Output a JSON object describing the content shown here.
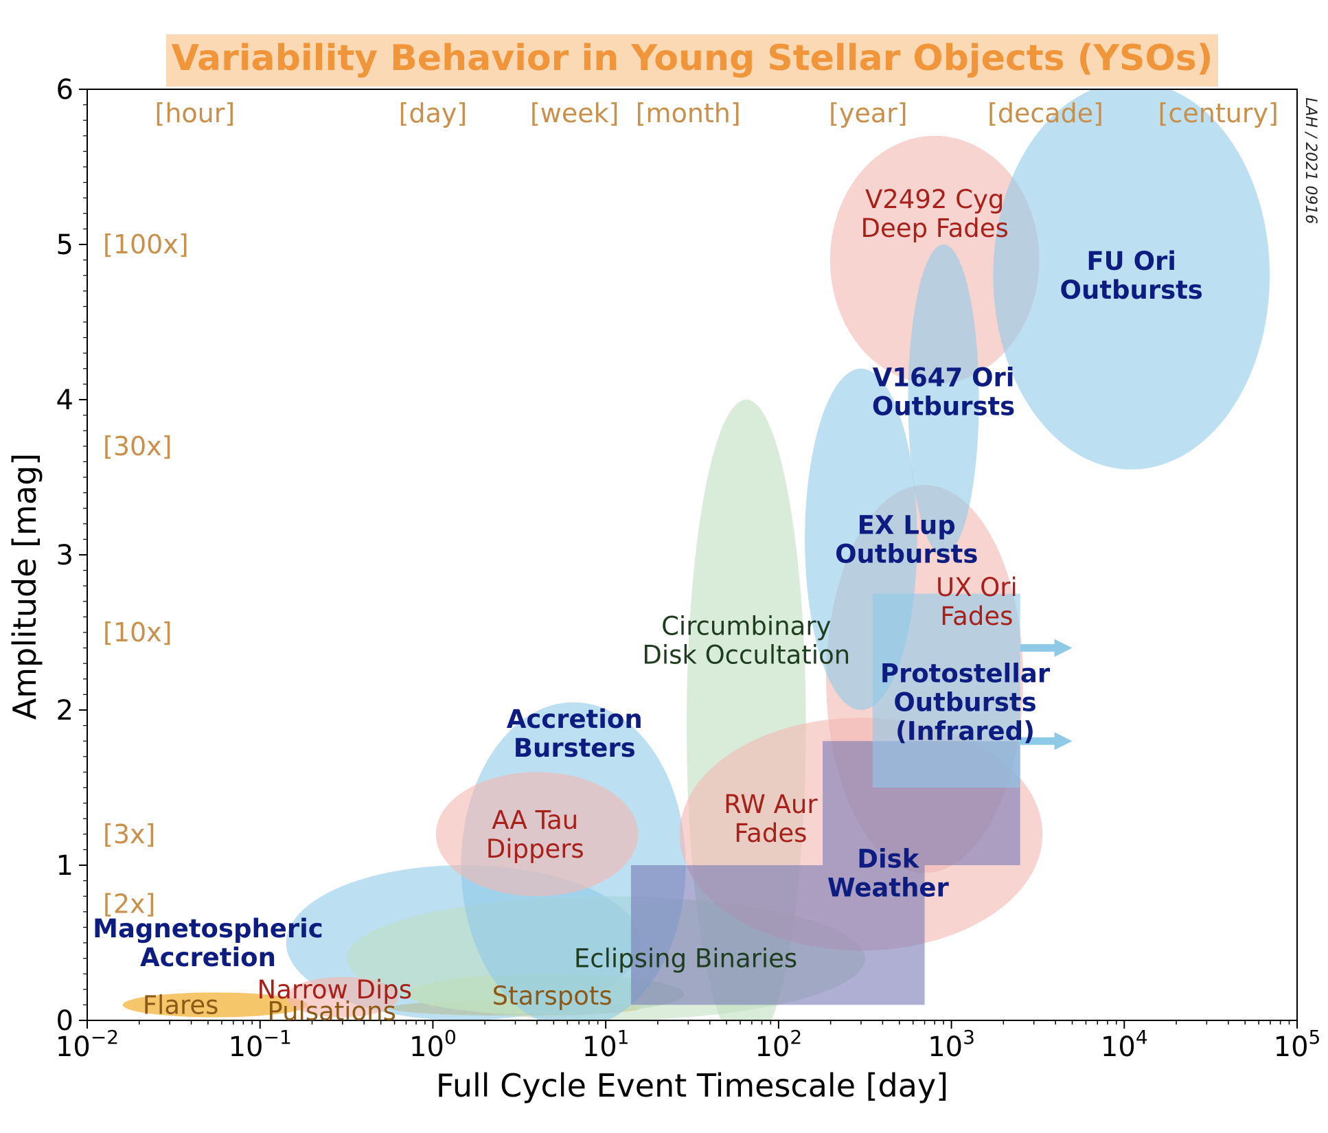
{
  "chart_data": {
    "type": "region-map",
    "title": "Variability Behavior in Young Stellar Objects (YSOs)",
    "xlabel": "Full Cycle Event Timescale [day]",
    "ylabel": "Amplitude [mag]",
    "xscale": "log",
    "xlim": [
      0.01,
      100000
    ],
    "ylim": [
      0,
      6
    ],
    "x_ticks": [
      {
        "value": 0.01,
        "base": "10",
        "exp": "−2"
      },
      {
        "value": 0.1,
        "base": "10",
        "exp": "−1"
      },
      {
        "value": 1,
        "base": "10",
        "exp": "0"
      },
      {
        "value": 10,
        "base": "10",
        "exp": "1"
      },
      {
        "value": 100,
        "base": "10",
        "exp": "2"
      },
      {
        "value": 1000,
        "base": "10",
        "exp": "3"
      },
      {
        "value": 10000,
        "base": "10",
        "exp": "4"
      },
      {
        "value": 100000,
        "base": "10",
        "exp": "5"
      }
    ],
    "y_ticks": [
      {
        "value": 0,
        "label": "0"
      },
      {
        "value": 1,
        "label": "1"
      },
      {
        "value": 2,
        "label": "2"
      },
      {
        "value": 3,
        "label": "3"
      },
      {
        "value": 4,
        "label": "4"
      },
      {
        "value": 5,
        "label": "5"
      },
      {
        "value": 6,
        "label": "6"
      }
    ],
    "time_labels": [
      {
        "text": "[hour]",
        "x": 0.042
      },
      {
        "text": "[day]",
        "x": 1.0
      },
      {
        "text": "[week]",
        "x": 6.6
      },
      {
        "text": "[month]",
        "x": 30
      },
      {
        "text": "[year]",
        "x": 330
      },
      {
        "text": "[decade]",
        "x": 3500
      },
      {
        "text": "[century]",
        "x": 35000
      }
    ],
    "flux_labels": [
      {
        "text": "[100x]",
        "y": 5.0
      },
      {
        "text": "[30x]",
        "y": 3.7
      },
      {
        "text": "[10x]",
        "y": 2.5
      },
      {
        "text": "[3x]",
        "y": 1.2
      },
      {
        "text": "[2x]",
        "y": 0.75
      }
    ],
    "colors": {
      "blue": "#8fc9e8",
      "red": "#f4b8b2",
      "green": "#bfdfbf",
      "orange": "#f2b945",
      "purple": "#7879b4",
      "navy_text": "#0d1c80",
      "red_text": "#a8201a",
      "green_text": "#1e3d1e",
      "brown_text": "#8c5a16"
    },
    "ellipses": [
      {
        "name": "flares",
        "cx": 0.055,
        "cy": 0.1,
        "dex": 1.07,
        "h": 0.16,
        "color": "orange",
        "opacity": 0.8
      },
      {
        "name": "pulsations",
        "cx": 3.0,
        "cy": 0.08,
        "dex": 1.45,
        "h": 0.1,
        "color": "orange",
        "opacity": 0.75
      },
      {
        "name": "magnetospheric-accretion",
        "cx": 1.5,
        "cy": 0.5,
        "dex": 2.05,
        "h": 1.0,
        "color": "blue",
        "opacity": 0.6
      },
      {
        "name": "eclipsing-binaries",
        "cx": 10,
        "cy": 0.4,
        "dex": 3.0,
        "h": 0.8,
        "color": "green",
        "opacity": 0.55
      },
      {
        "name": "starspots",
        "cx": 4.5,
        "cy": 0.17,
        "dex": 1.6,
        "h": 0.26,
        "color": "green",
        "opacity": 0.8
      },
      {
        "name": "narrow-dips",
        "cx": 0.3,
        "cy": 0.15,
        "dex": 0.65,
        "h": 0.26,
        "color": "red",
        "opacity": 0.65
      },
      {
        "name": "accretion-bursters",
        "cx": 6.5,
        "cy": 1.0,
        "dex": 1.3,
        "h": 2.1,
        "color": "blue",
        "opacity": 0.6
      },
      {
        "name": "aa-tau-dippers",
        "cx": 4.0,
        "cy": 1.2,
        "dex": 1.17,
        "h": 0.8,
        "color": "red",
        "opacity": 0.6
      },
      {
        "name": "circumbinary",
        "cx": 65,
        "cy": 1.9,
        "dex": 0.69,
        "h": 4.2,
        "color": "green",
        "opacity": 0.6
      },
      {
        "name": "rw-aur",
        "cx": 300,
        "cy": 1.2,
        "dex": 2.1,
        "h": 1.5,
        "color": "red",
        "opacity": 0.6
      },
      {
        "name": "ux-ori",
        "cx": 700,
        "cy": 2.2,
        "dex": 1.14,
        "h": 2.5,
        "color": "red",
        "opacity": 0.6
      },
      {
        "name": "ex-lup",
        "cx": 300,
        "cy": 3.1,
        "dex": 0.65,
        "h": 2.2,
        "color": "blue",
        "opacity": 0.6
      },
      {
        "name": "v2492",
        "cx": 800,
        "cy": 4.9,
        "dex": 1.21,
        "h": 1.6,
        "color": "red",
        "opacity": 0.6
      },
      {
        "name": "v1647",
        "cx": 900,
        "cy": 4.0,
        "dex": 0.41,
        "h": 2.0,
        "color": "blue",
        "opacity": 0.6
      },
      {
        "name": "fu-ori",
        "cx": 11000,
        "cy": 4.8,
        "dex": 1.6,
        "h": 2.5,
        "color": "blue",
        "opacity": 0.6
      }
    ],
    "polygons": [
      {
        "name": "disk-weather",
        "color": "purple",
        "opacity": 0.6,
        "points": [
          [
            14,
            0.1
          ],
          [
            700,
            0.1
          ],
          [
            700,
            1.0
          ],
          [
            2500,
            1.0
          ],
          [
            2500,
            1.8
          ],
          [
            180,
            1.8
          ],
          [
            180,
            1.0
          ],
          [
            14,
            1.0
          ]
        ]
      },
      {
        "name": "protostellar",
        "color": "blue",
        "opacity": 0.6,
        "points": [
          [
            350,
            1.5
          ],
          [
            2500,
            1.5
          ],
          [
            2500,
            2.75
          ],
          [
            350,
            2.75
          ]
        ]
      }
    ],
    "arrows": [
      {
        "name": "protostellar-arrow-upper",
        "x1": 2500,
        "x2": 5000,
        "y": 2.4
      },
      {
        "name": "protostellar-arrow-lower",
        "x1": 2500,
        "x2": 5000,
        "y": 1.8
      }
    ],
    "region_labels": [
      {
        "name": "flares-label",
        "lines": [
          "Flares"
        ],
        "x": 0.02,
        "y": 0.1,
        "color": "brown_text",
        "bold": false
      },
      {
        "name": "pulsations-label",
        "lines": [
          "Pulsations"
        ],
        "x": 0.26,
        "y": 0.06,
        "color": "brown_text",
        "bold": false
      },
      {
        "name": "narrow-dips-label",
        "lines": [
          "Narrow Dips"
        ],
        "x": 0.27,
        "y": 0.2,
        "color": "red_text",
        "bold": false
      },
      {
        "name": "starspots-label",
        "lines": [
          "Starspots"
        ],
        "x": 4.9,
        "y": 0.16,
        "color": "brown_text",
        "bold": false
      },
      {
        "name": "magnetospheric-label",
        "lines": [
          "Magnetospheric",
          "Accretion"
        ],
        "x": 0.05,
        "y": 0.5,
        "color": "navy_text",
        "bold": true
      },
      {
        "name": "eclipsing-label",
        "lines": [
          "Eclipsing Binaries"
        ],
        "x": 29,
        "y": 0.4,
        "color": "green_text",
        "bold": false
      },
      {
        "name": "accretion-bursters-label",
        "lines": [
          "Accretion",
          "Bursters"
        ],
        "x": 6.6,
        "y": 1.85,
        "color": "navy_text",
        "bold": true
      },
      {
        "name": "aa-tau-label",
        "lines": [
          "AA Tau",
          "Dippers"
        ],
        "x": 3.9,
        "y": 1.2,
        "color": "red_text",
        "bold": false
      },
      {
        "name": "circumbinary-label",
        "lines": [
          "Circumbinary",
          "Disk Occultation"
        ],
        "x": 65,
        "y": 2.45,
        "color": "green_text",
        "bold": false
      },
      {
        "name": "rw-aur-label",
        "lines": [
          "RW Aur",
          "Fades"
        ],
        "x": 90,
        "y": 1.3,
        "color": "red_text",
        "bold": false
      },
      {
        "name": "disk-weather-label",
        "lines": [
          "Disk",
          "Weather"
        ],
        "x": 430,
        "y": 0.95,
        "color": "navy_text",
        "bold": true
      },
      {
        "name": "protostellar-label",
        "lines": [
          "Protostellar",
          "Outbursts",
          "(Infrared)"
        ],
        "x": 1200,
        "y": 2.05,
        "color": "navy_text",
        "bold": true
      },
      {
        "name": "ux-ori-label",
        "lines": [
          "UX Ori",
          "Fades"
        ],
        "x": 1400,
        "y": 2.7,
        "color": "red_text",
        "bold": false
      },
      {
        "name": "ex-lup-label",
        "lines": [
          "EX Lup",
          "Outbursts"
        ],
        "x": 550,
        "y": 3.1,
        "color": "navy_text",
        "bold": true
      },
      {
        "name": "v1647-label",
        "lines": [
          "V1647 Ori",
          "Outbursts"
        ],
        "x": 900,
        "y": 4.05,
        "color": "navy_text",
        "bold": true
      },
      {
        "name": "v2492-label",
        "lines": [
          "V2492 Cyg",
          "Deep Fades"
        ],
        "x": 800,
        "y": 5.2,
        "color": "red_text",
        "bold": false
      },
      {
        "name": "fu-ori-label",
        "lines": [
          "FU Ori",
          "Outbursts"
        ],
        "x": 11000,
        "y": 4.8,
        "color": "navy_text",
        "bold": true
      }
    ]
  },
  "credit": "LAH / 2021 0916"
}
